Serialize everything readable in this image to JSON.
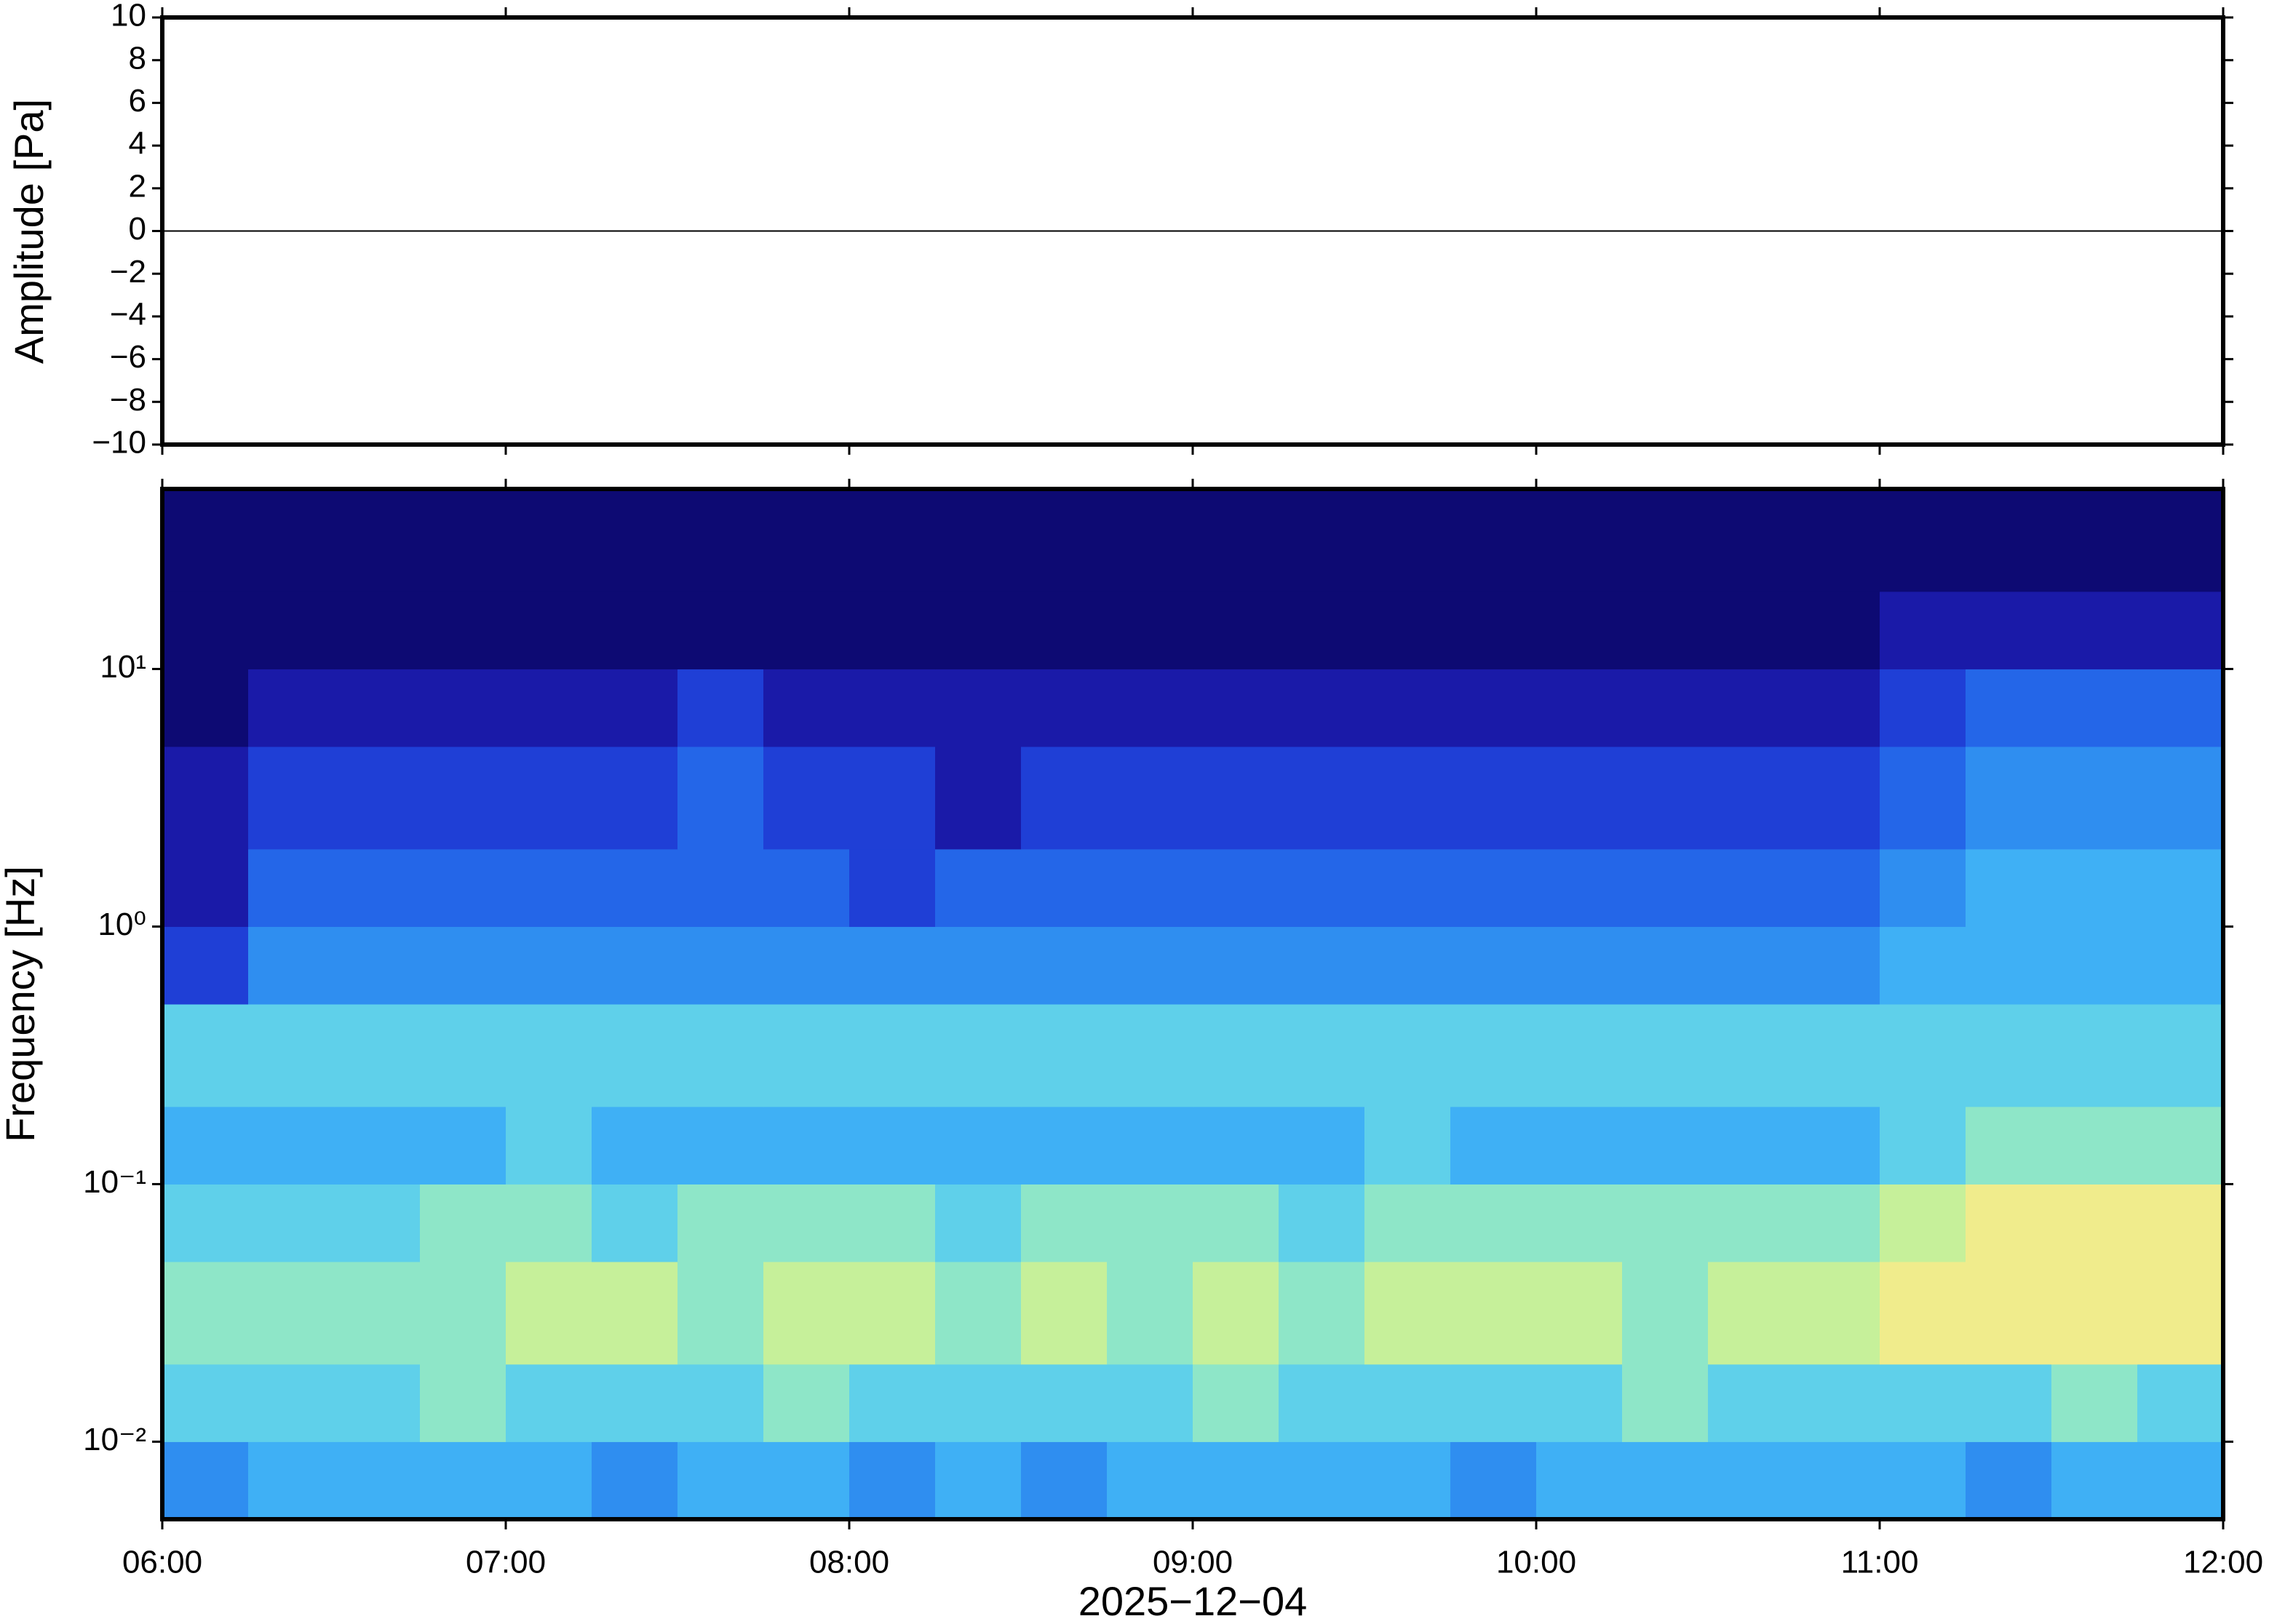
{
  "chart_data": [
    {
      "type": "line",
      "ylabel": "Amplitude [Pa]",
      "x": [
        6,
        6.25,
        6.5,
        6.75,
        7,
        7.25,
        7.5,
        7.75,
        8,
        8.25,
        8.5,
        8.75,
        9,
        9.25,
        9.5,
        9.75,
        10,
        10.25,
        10.5,
        10.75,
        11,
        11.25,
        11.5,
        11.75,
        12
      ],
      "values": [
        0,
        0,
        0,
        0,
        0,
        0,
        0,
        0,
        0,
        0,
        0,
        0,
        0,
        0,
        0,
        0,
        0,
        0,
        0,
        0,
        0,
        0,
        0,
        0,
        0
      ],
      "color": "#000000",
      "xlim": [
        6,
        12
      ],
      "xticks": [
        6,
        7,
        8,
        9,
        10,
        11,
        12
      ],
      "ylim": [
        -10,
        10
      ],
      "yticks": [
        {
          "value": -10,
          "label": "−10"
        },
        {
          "value": -8,
          "label": "−8"
        },
        {
          "value": -6,
          "label": "−6"
        },
        {
          "value": -4,
          "label": "−4"
        },
        {
          "value": -2,
          "label": "−2"
        },
        0,
        2,
        4,
        6,
        8,
        10
      ]
    },
    {
      "type": "heatmap",
      "ylabel": "Frequency [Hz]",
      "xlabel": "2025−12−04",
      "log_y": true,
      "xlim": [
        6,
        12
      ],
      "xticks": [
        {
          "value": 6,
          "label": "06:00"
        },
        {
          "value": 7,
          "label": "07:00"
        },
        {
          "value": 8,
          "label": "08:00"
        },
        {
          "value": 9,
          "label": "09:00"
        },
        {
          "value": 10,
          "label": "10:00"
        },
        {
          "value": 11,
          "label": "11:00"
        },
        {
          "value": 12,
          "label": "12:00"
        }
      ],
      "ylim": [
        0.005,
        50
      ],
      "yticks": [
        {
          "value": 0.01,
          "label": "10⁻²"
        },
        {
          "value": 0.1,
          "label": "10⁻¹"
        },
        {
          "value": 1,
          "label": "10⁰"
        },
        {
          "value": 10,
          "label": "10¹"
        }
      ],
      "x_edges": [
        6,
        6.25,
        6.5,
        6.75,
        7,
        7.25,
        7.5,
        7.75,
        8,
        8.25,
        8.5,
        8.75,
        9,
        9.25,
        9.5,
        9.75,
        10,
        10.25,
        10.5,
        10.75,
        11,
        11.25,
        11.5,
        11.75,
        12
      ],
      "y_edges": [
        0.005,
        0.01,
        0.02,
        0.05,
        0.1,
        0.2,
        0.5,
        1,
        2,
        5,
        10,
        20,
        50
      ],
      "zlim": [
        0,
        10
      ],
      "colormap": [
        "#0d0a73",
        "#1a1aa8",
        "#1f3fd6",
        "#2466e8",
        "#2f8ef0",
        "#3fb0f5",
        "#5fd0ea",
        "#8ee6c8",
        "#c6f09a",
        "#f0ec8c",
        "#f7c87a"
      ],
      "z": [
        [
          4,
          5,
          5,
          5,
          5,
          4,
          5,
          5,
          4,
          5,
          4,
          5,
          5,
          5,
          5,
          4,
          5,
          5,
          5,
          5,
          5,
          4,
          5,
          5
        ],
        [
          6,
          6,
          6,
          7,
          6,
          6,
          6,
          7,
          6,
          6,
          6,
          6,
          7,
          6,
          6,
          6,
          6,
          7,
          6,
          6,
          6,
          6,
          7,
          6
        ],
        [
          7,
          7,
          7,
          7,
          8,
          8,
          7,
          8,
          8,
          7,
          8,
          7,
          8,
          7,
          8,
          8,
          8,
          7,
          8,
          8,
          9,
          9,
          9,
          9
        ],
        [
          6,
          6,
          6,
          7,
          7,
          6,
          7,
          7,
          7,
          6,
          7,
          7,
          7,
          6,
          7,
          7,
          7,
          7,
          7,
          7,
          8,
          9,
          9,
          9
        ],
        [
          5,
          5,
          5,
          5,
          6,
          5,
          5,
          5,
          5,
          5,
          5,
          5,
          5,
          5,
          6,
          5,
          5,
          5,
          5,
          5,
          6,
          7,
          7,
          7
        ],
        [
          6,
          6,
          6,
          6,
          6,
          6,
          6,
          6,
          6,
          6,
          6,
          6,
          6,
          6,
          6,
          6,
          6,
          6,
          6,
          6,
          6,
          6,
          6,
          6
        ],
        [
          2,
          4,
          4,
          4,
          4,
          4,
          4,
          4,
          4,
          4,
          4,
          4,
          4,
          4,
          4,
          4,
          4,
          4,
          4,
          4,
          5,
          5,
          5,
          5
        ],
        [
          1,
          3,
          3,
          3,
          3,
          3,
          3,
          3,
          2,
          3,
          3,
          3,
          3,
          3,
          3,
          3,
          3,
          3,
          3,
          3,
          4,
          5,
          5,
          5
        ],
        [
          1,
          2,
          2,
          2,
          2,
          2,
          3,
          2,
          2,
          1,
          2,
          2,
          2,
          2,
          2,
          2,
          2,
          2,
          2,
          2,
          3,
          4,
          4,
          4
        ],
        [
          0,
          1,
          1,
          1,
          1,
          1,
          2,
          1,
          1,
          1,
          1,
          1,
          1,
          1,
          1,
          1,
          1,
          1,
          1,
          1,
          2,
          3,
          3,
          3
        ],
        [
          0,
          0,
          0,
          0,
          0,
          0,
          0,
          0,
          0,
          0,
          0,
          0,
          0,
          0,
          0,
          0,
          0,
          0,
          0,
          0,
          1,
          1,
          1,
          1
        ],
        [
          0,
          0,
          0,
          0,
          0,
          0,
          0,
          0,
          0,
          0,
          0,
          0,
          0,
          0,
          0,
          0,
          0,
          0,
          0,
          0,
          0,
          0,
          0,
          0
        ]
      ]
    }
  ]
}
